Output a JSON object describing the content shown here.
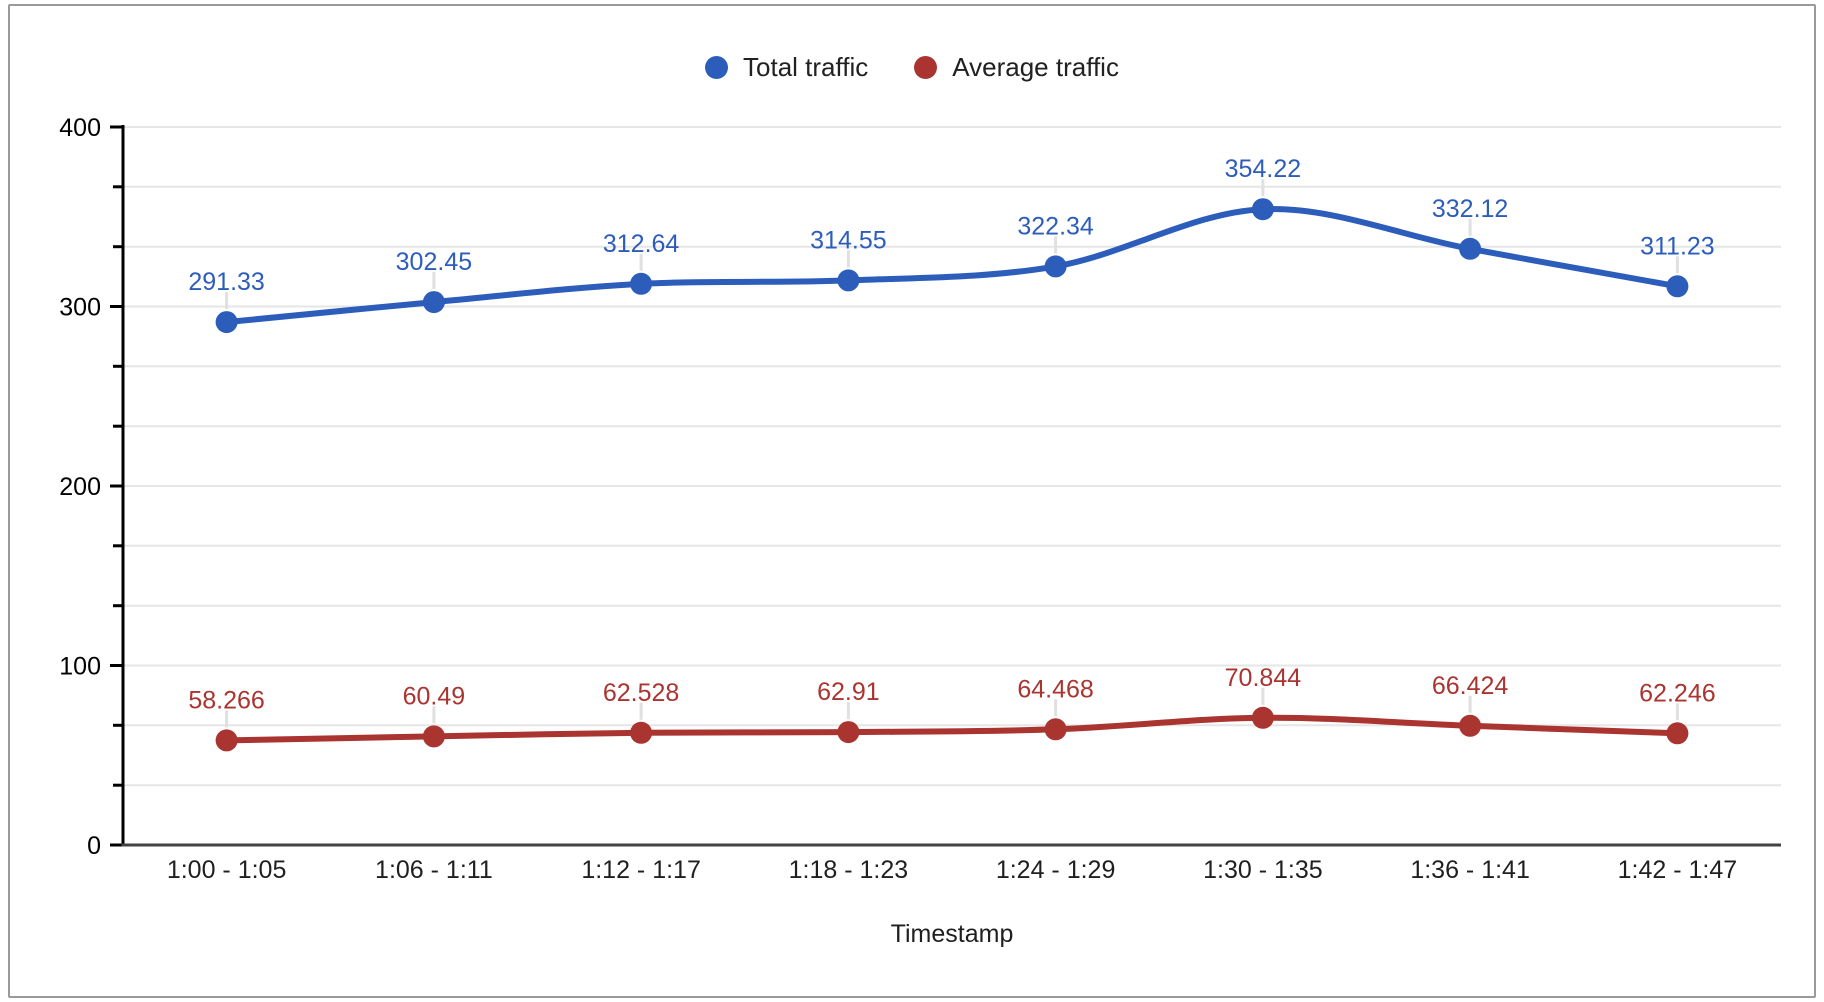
{
  "chart_data": {
    "type": "line",
    "title": "",
    "xlabel": "Timestamp",
    "ylabel": "",
    "categories": [
      "1:00 - 1:05",
      "1:06 - 1:11",
      "1:12 - 1:17",
      "1:18 - 1:23",
      "1:24 - 1:29",
      "1:30 - 1:35",
      "1:36 - 1:41",
      "1:42 - 1:47"
    ],
    "series": [
      {
        "name": "Total traffic",
        "color": "#2D5DBB",
        "values": [
          291.33,
          302.45,
          312.64,
          314.55,
          322.34,
          354.22,
          332.12,
          311.23
        ]
      },
      {
        "name": "Average traffic",
        "color": "#A93430",
        "values": [
          58.266,
          60.49,
          62.528,
          62.91,
          64.468,
          70.844,
          66.424,
          62.246
        ]
      }
    ],
    "ylim": [
      0,
      400
    ],
    "y_major_ticks": [
      0,
      100,
      200,
      300,
      400
    ],
    "y_minor_divisions_per_major": 3,
    "grid": true,
    "line_style": "smooth",
    "point_labels_shown": true,
    "legend_position": "top",
    "colors": {
      "gridline": "#E6E6E6",
      "y_axis": "#000000",
      "x_baseline": "#424242",
      "label_stub": "#E0E0E0",
      "tick_label": "#000000",
      "category_label": "#1F1F1F"
    }
  }
}
